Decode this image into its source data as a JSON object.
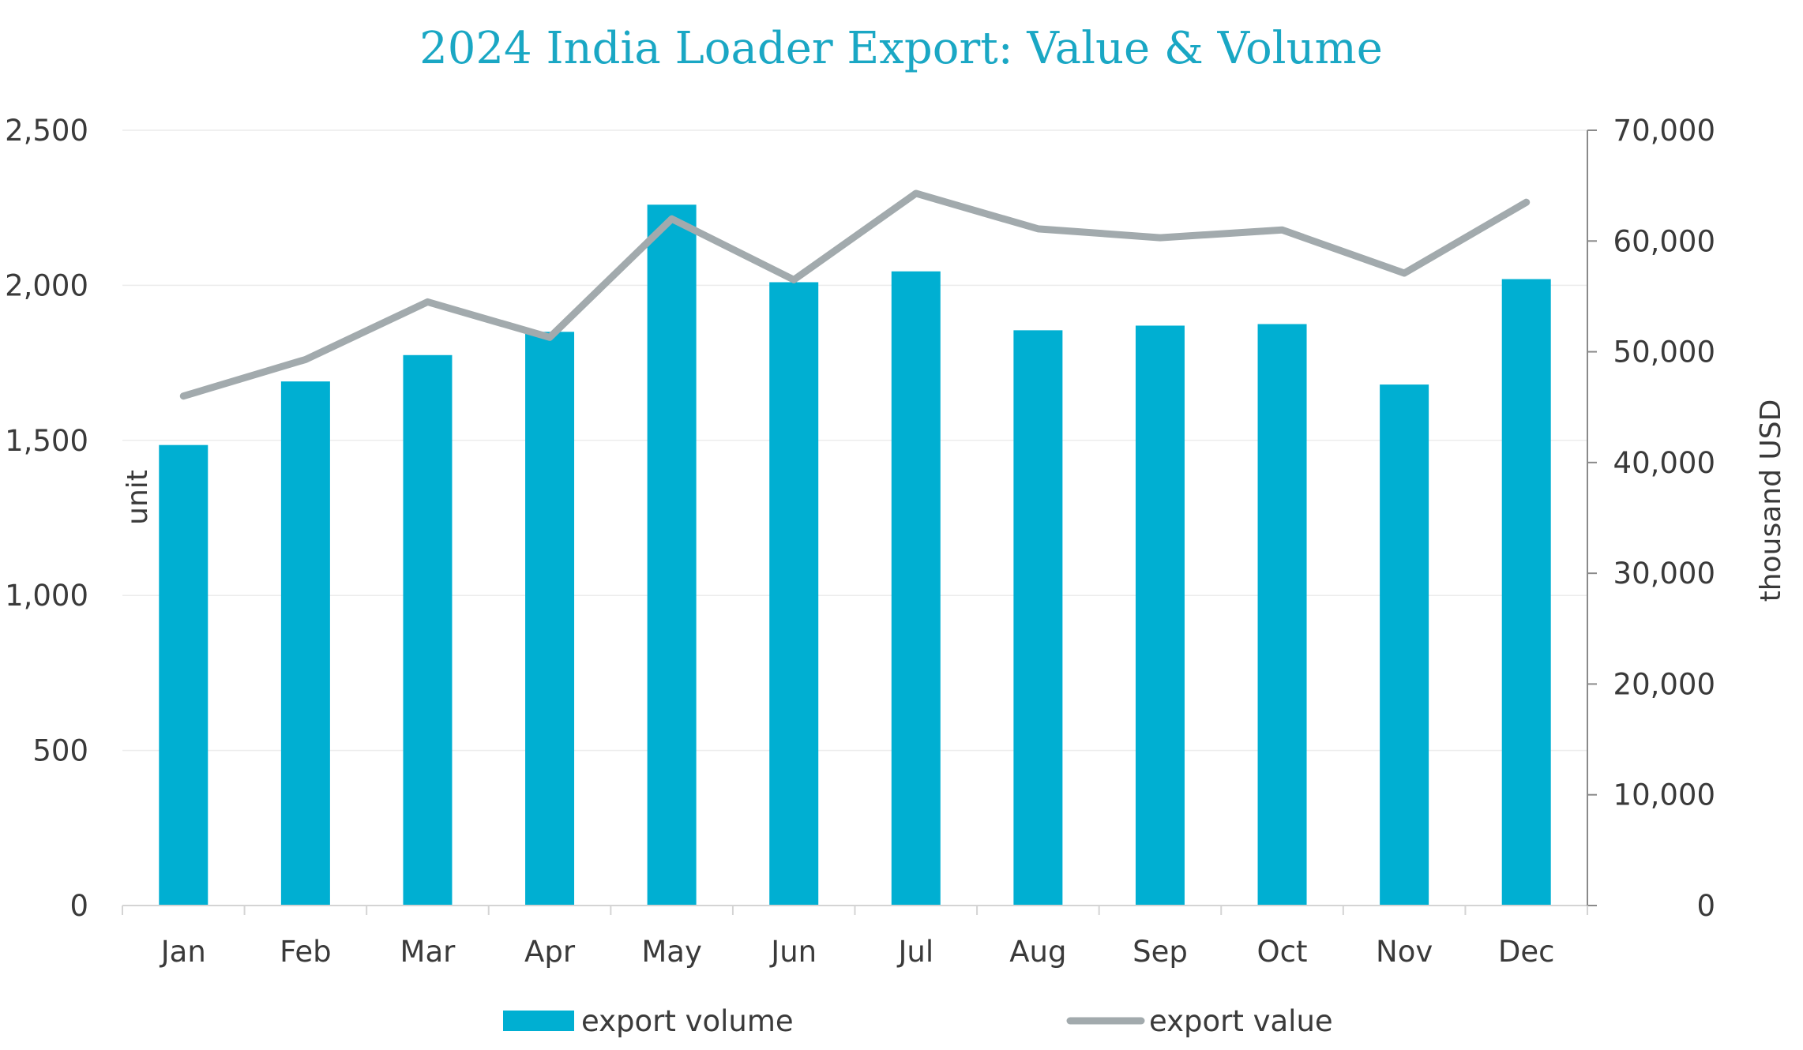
{
  "chart_data": {
    "type": "bar+line",
    "title": "2024 India Loader Export: Value & Volume",
    "categories": [
      "Jan",
      "Feb",
      "Mar",
      "Apr",
      "May",
      "Jun",
      "Jul",
      "Aug",
      "Sep",
      "Oct",
      "Nov",
      "Dec"
    ],
    "series": [
      {
        "name": "export volume",
        "type": "bar",
        "axis": "left",
        "color": "#00afd2",
        "values": [
          1485,
          1690,
          1775,
          1850,
          2260,
          2010,
          2045,
          1855,
          1870,
          1875,
          1680,
          2020
        ]
      },
      {
        "name": "export value",
        "type": "line",
        "axis": "right",
        "color": "#a2aaad",
        "values": [
          46000,
          49300,
          54500,
          51300,
          62000,
          56500,
          64300,
          61100,
          60300,
          61000,
          57100,
          63500
        ]
      }
    ],
    "left_axis": {
      "label": "unit",
      "ylim": [
        0,
        2500
      ],
      "ticks": [
        0,
        500,
        1000,
        1500,
        2000,
        2500
      ],
      "tick_labels": [
        "0",
        "500",
        "1,000",
        "1,500",
        "2,000",
        "2,500"
      ]
    },
    "right_axis": {
      "label": "thousand USD",
      "ylim": [
        0,
        70000
      ],
      "ticks": [
        0,
        10000,
        20000,
        30000,
        40000,
        50000,
        60000,
        70000
      ],
      "tick_labels": [
        "0",
        "10,000",
        "20,000",
        "30,000",
        "40,000",
        "50,000",
        "60,000",
        "70,000"
      ]
    },
    "grid": true,
    "legend_position": "bottom"
  }
}
